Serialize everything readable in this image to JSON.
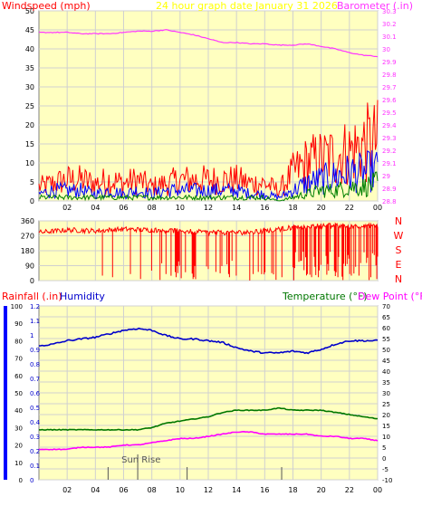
{
  "colors": {
    "background": "#ffffff",
    "plot_fill": "#ffffc0",
    "grid": "#d0d0d0",
    "windspeed": "#ff0000",
    "wind_gust": "#ff0000",
    "wind_avg": "#0000ff",
    "wind_low": "#008000",
    "barometer": "#ff33ff",
    "direction": "#ff0000",
    "humidity": "#0000cc",
    "temperature": "#007700",
    "dewpoint": "#ff00ff",
    "rainfall": "#0000ff",
    "title": "#ffff00",
    "axis_text": "#000000",
    "marker": "#555555"
  },
  "chart_data": [
    {
      "type": "line",
      "title": "24 hour graph date   January 31 2026",
      "left_label": "Windspeed (mph)",
      "right_label": "Barometer (.in)",
      "x_ticks": [
        "02",
        "04",
        "06",
        "08",
        "10",
        "12",
        "14",
        "16",
        "18",
        "20",
        "22",
        "00"
      ],
      "y_left_ticks": [
        "0",
        "5",
        "10",
        "15",
        "20",
        "25",
        "30",
        "35",
        "40",
        "45",
        "50"
      ],
      "y_left_range": [
        0,
        50
      ],
      "y_right_ticks": [
        "28.8",
        "28.9",
        "29",
        "29.1",
        "29.2",
        "29.3",
        "29.4",
        "29.5",
        "29.6",
        "29.7",
        "29.8",
        "29.9",
        "30",
        "30.1",
        "30.2",
        "30.3"
      ],
      "y_right_range": [
        28.8,
        30.3
      ],
      "x_range_hours": [
        0,
        24
      ],
      "series": [
        {
          "name": "Windspeed (mph)",
          "kind": "gust",
          "points": [
            [
              0,
              4
            ],
            [
              1,
              5
            ],
            [
              2,
              6
            ],
            [
              3,
              6
            ],
            [
              4,
              5
            ],
            [
              5,
              6
            ],
            [
              6,
              5
            ],
            [
              7,
              6
            ],
            [
              8,
              4
            ],
            [
              9,
              5
            ],
            [
              10,
              6
            ],
            [
              11,
              6
            ],
            [
              12,
              6
            ],
            [
              13,
              6
            ],
            [
              14,
              6
            ],
            [
              15,
              5
            ],
            [
              16,
              5
            ],
            [
              17,
              3
            ],
            [
              18,
              8
            ],
            [
              19,
              11
            ],
            [
              20,
              12
            ],
            [
              21,
              13
            ],
            [
              22,
              14
            ],
            [
              23,
              16
            ],
            [
              24,
              17
            ]
          ]
        },
        {
          "name": "Windspeed avg",
          "kind": "avg",
          "points": [
            [
              0,
              2
            ],
            [
              1,
              3
            ],
            [
              2,
              3
            ],
            [
              3,
              3
            ],
            [
              4,
              2
            ],
            [
              5,
              3
            ],
            [
              6,
              2
            ],
            [
              7,
              3
            ],
            [
              8,
              2
            ],
            [
              9,
              3
            ],
            [
              10,
              3
            ],
            [
              11,
              3
            ],
            [
              12,
              3
            ],
            [
              13,
              3
            ],
            [
              14,
              3
            ],
            [
              15,
              2
            ],
            [
              16,
              2
            ],
            [
              17,
              1
            ],
            [
              18,
              3
            ],
            [
              19,
              5
            ],
            [
              20,
              6
            ],
            [
              21,
              7
            ],
            [
              22,
              8
            ],
            [
              23,
              8
            ],
            [
              24,
              9
            ]
          ]
        },
        {
          "name": "Windspeed low",
          "kind": "low",
          "points": [
            [
              0,
              1
            ],
            [
              1,
              1
            ],
            [
              2,
              1
            ],
            [
              3,
              1
            ],
            [
              4,
              1
            ],
            [
              5,
              1
            ],
            [
              6,
              1
            ],
            [
              7,
              1
            ],
            [
              8,
              1
            ],
            [
              9,
              1
            ],
            [
              10,
              1
            ],
            [
              11,
              1
            ],
            [
              12,
              1
            ],
            [
              13,
              1
            ],
            [
              14,
              1
            ],
            [
              15,
              1
            ],
            [
              16,
              1
            ],
            [
              17,
              0
            ],
            [
              18,
              1
            ],
            [
              19,
              2
            ],
            [
              20,
              3
            ],
            [
              21,
              3
            ],
            [
              22,
              4
            ],
            [
              23,
              4
            ],
            [
              24,
              5
            ]
          ]
        },
        {
          "name": "Barometer (.in)",
          "axis": "right",
          "points": [
            [
              0,
              30.13
            ],
            [
              1,
              30.13
            ],
            [
              2,
              30.13
            ],
            [
              3,
              30.12
            ],
            [
              4,
              30.12
            ],
            [
              5,
              30.12
            ],
            [
              6,
              30.13
            ],
            [
              7,
              30.14
            ],
            [
              8,
              30.14
            ],
            [
              9,
              30.15
            ],
            [
              10,
              30.13
            ],
            [
              11,
              30.11
            ],
            [
              12,
              30.08
            ],
            [
              13,
              30.05
            ],
            [
              14,
              30.05
            ],
            [
              15,
              30.04
            ],
            [
              16,
              30.04
            ],
            [
              17,
              30.03
            ],
            [
              18,
              30.03
            ],
            [
              19,
              30.04
            ],
            [
              20,
              30.02
            ],
            [
              21,
              30.0
            ],
            [
              22,
              29.97
            ],
            [
              23,
              29.95
            ],
            [
              24,
              29.94
            ]
          ]
        }
      ]
    },
    {
      "type": "line",
      "title": "",
      "y_ticks": [
        "0",
        "90",
        "180",
        "270",
        "360"
      ],
      "y_range": [
        0,
        360
      ],
      "compass": [
        "N",
        "W",
        "S",
        "E",
        "N"
      ],
      "x_range_hours": [
        0,
        24
      ],
      "series": [
        {
          "name": "Wind direction",
          "base_points": [
            [
              0,
              290
            ],
            [
              2,
              305
            ],
            [
              4,
              300
            ],
            [
              6,
              310
            ],
            [
              8,
              305
            ],
            [
              10,
              300
            ],
            [
              12,
              290
            ],
            [
              14,
              290
            ],
            [
              15,
              290
            ],
            [
              16,
              300
            ],
            [
              17,
              310
            ],
            [
              18,
              320
            ],
            [
              20,
              330
            ],
            [
              22,
              330
            ],
            [
              24,
              330
            ]
          ],
          "drops": [
            [
              4.5,
              30
            ],
            [
              5.2,
              20
            ],
            [
              6.5,
              40
            ],
            [
              7.2,
              10
            ],
            [
              8.0,
              60
            ],
            [
              9.0,
              40
            ],
            [
              9.7,
              20
            ],
            [
              10.4,
              50
            ],
            [
              11.0,
              30
            ],
            [
              12.0,
              70
            ],
            [
              13.5,
              20
            ],
            [
              14.0,
              30
            ],
            [
              15.2,
              40
            ],
            [
              16.0,
              50
            ],
            [
              17.2,
              20
            ],
            [
              18.0,
              80
            ],
            [
              19.0,
              40
            ],
            [
              19.8,
              20
            ],
            [
              20.5,
              60
            ],
            [
              21.2,
              20
            ],
            [
              22.0,
              40
            ],
            [
              22.7,
              30
            ],
            [
              23.5,
              20
            ]
          ]
        }
      ]
    },
    {
      "type": "line",
      "title": "",
      "left_label_a": "Rainfall (.in)",
      "left_label_b": "Humidity",
      "right_label_a": "Temperature (°F)",
      "right_label_b": "Dew Point (°F)",
      "x_ticks": [
        "02",
        "04",
        "06",
        "08",
        "10",
        "12",
        "14",
        "16",
        "18",
        "20",
        "22",
        "00"
      ],
      "y_left_rain_ticks": [
        "0",
        "0.1",
        "0.2",
        "0.3",
        "0.4",
        "0.5",
        "0.6",
        "0.7",
        "0.8",
        "0.9",
        "1",
        "1.1",
        "1.2"
      ],
      "y_left_rain_range": [
        0,
        1.2
      ],
      "y_left_hum_ticks": [
        "0",
        "10",
        "20",
        "30",
        "40",
        "50",
        "60",
        "70",
        "80",
        "90",
        "100"
      ],
      "y_left_hum_range": [
        0,
        100
      ],
      "y_right_ticks": [
        "-10",
        "-5",
        "0",
        "5",
        "10",
        "15",
        "20",
        "25",
        "30",
        "35",
        "40",
        "45",
        "50",
        "55",
        "60",
        "65",
        "70"
      ],
      "y_right_range": [
        -10,
        70
      ],
      "annotation": "Sun Rise",
      "annotation_hour": 7,
      "marker_hours": [
        4.9,
        7.0,
        10.5,
        17.2
      ],
      "x_range_hours": [
        0,
        24
      ],
      "series": [
        {
          "name": "Humidity",
          "axis": "left_humidity",
          "points": [
            [
              0,
              77
            ],
            [
              1,
              78
            ],
            [
              2,
              80
            ],
            [
              3,
              81
            ],
            [
              4,
              82
            ],
            [
              5,
              84
            ],
            [
              6,
              86
            ],
            [
              7,
              87
            ],
            [
              8,
              86
            ],
            [
              9,
              83
            ],
            [
              10,
              81
            ],
            [
              11,
              81
            ],
            [
              12,
              80
            ],
            [
              13,
              79
            ],
            [
              14,
              76
            ],
            [
              15,
              74
            ],
            [
              16,
              73
            ],
            [
              17,
              73
            ],
            [
              18,
              74
            ],
            [
              19,
              73
            ],
            [
              20,
              75
            ],
            [
              21,
              78
            ],
            [
              22,
              80
            ],
            [
              23,
              80
            ],
            [
              24,
              80
            ]
          ]
        },
        {
          "name": "Temperature (°F)",
          "axis": "right",
          "points": [
            [
              0,
              13
            ],
            [
              1,
              13
            ],
            [
              2,
              13
            ],
            [
              3,
              13
            ],
            [
              4,
              13
            ],
            [
              5,
              13
            ],
            [
              6,
              13
            ],
            [
              7,
              13
            ],
            [
              8,
              14
            ],
            [
              9,
              16
            ],
            [
              10,
              17
            ],
            [
              11,
              18
            ],
            [
              12,
              19
            ],
            [
              13,
              21
            ],
            [
              14,
              22
            ],
            [
              15,
              22
            ],
            [
              16,
              22
            ],
            [
              17,
              23
            ],
            [
              18,
              22
            ],
            [
              19,
              22
            ],
            [
              20,
              22
            ],
            [
              21,
              21
            ],
            [
              22,
              20
            ],
            [
              23,
              19
            ],
            [
              24,
              18
            ]
          ]
        },
        {
          "name": "Dew Point (°F)",
          "axis": "right",
          "points": [
            [
              0,
              4
            ],
            [
              1,
              4
            ],
            [
              2,
              4
            ],
            [
              3,
              5
            ],
            [
              4,
              5
            ],
            [
              5,
              5
            ],
            [
              6,
              6
            ],
            [
              7,
              6
            ],
            [
              8,
              7
            ],
            [
              9,
              8
            ],
            [
              10,
              9
            ],
            [
              11,
              9
            ],
            [
              12,
              10
            ],
            [
              13,
              11
            ],
            [
              14,
              12
            ],
            [
              15,
              12
            ],
            [
              16,
              11
            ],
            [
              17,
              11
            ],
            [
              18,
              11
            ],
            [
              19,
              11
            ],
            [
              20,
              10
            ],
            [
              21,
              10
            ],
            [
              22,
              9
            ],
            [
              23,
              9
            ],
            [
              24,
              8
            ]
          ]
        }
      ]
    }
  ]
}
